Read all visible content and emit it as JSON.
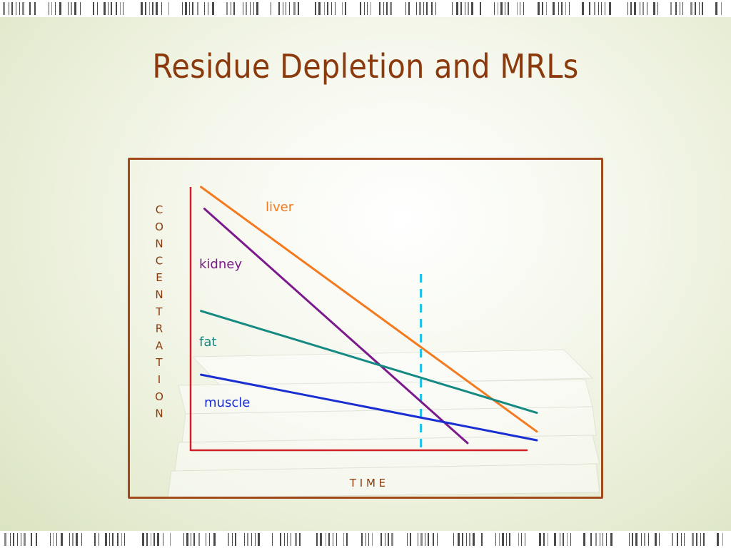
{
  "slide": {
    "title": "Residue Depletion and MRLs"
  },
  "chart_data": {
    "type": "line",
    "title": "",
    "xlabel": "T I M E",
    "ylabel": "CONCENTRATION",
    "xlim": [
      0,
      100
    ],
    "ylim": [
      0,
      100
    ],
    "grid": false,
    "legend": "inline labels",
    "series": [
      {
        "name": "liver",
        "color": "#f47a1f",
        "x": [
          3,
          100
        ],
        "y": [
          100,
          7.1
        ]
      },
      {
        "name": "kidney",
        "color": "#7b1a8c",
        "x": [
          4,
          80
        ],
        "y": [
          91.7,
          2.7
        ]
      },
      {
        "name": "fat",
        "color": "#158a82",
        "x": [
          3,
          100
        ],
        "y": [
          52.9,
          14.2
        ]
      },
      {
        "name": "muscle",
        "color": "#1a2fd1",
        "x": [
          3,
          100
        ],
        "y": [
          28.7,
          3.8
        ]
      }
    ],
    "reference_line": {
      "x": 66.5,
      "color": "#22c3e6",
      "style": "dashed"
    },
    "axis_color": "#d0202a"
  }
}
